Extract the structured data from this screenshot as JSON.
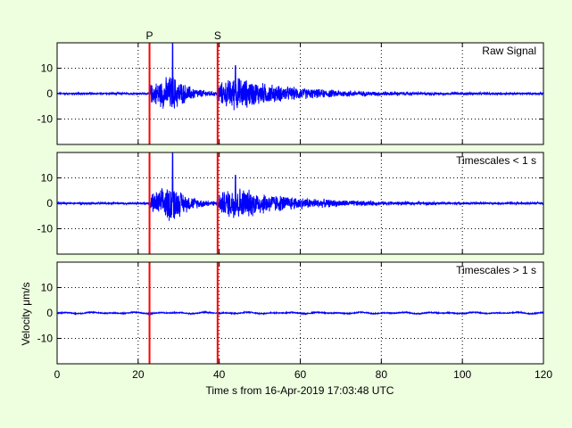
{
  "colors": {
    "background": "#eeffe0",
    "plot_background": "#ffffff",
    "trace": "#0000ff",
    "phase_marker": "#ff0000",
    "grid": "#000000"
  },
  "chart_data": {
    "type": "line",
    "layout": "three stacked panels sharing x axis",
    "xlabel": "Time s from 16-Apr-2019 17:03:48 UTC",
    "ylabel": "Velocity μm/s",
    "xlim": [
      0,
      120
    ],
    "xticks": [
      0,
      20,
      40,
      60,
      80,
      100,
      120
    ],
    "grid": true,
    "phase_markers": [
      {
        "label": "P",
        "x": 22.8
      },
      {
        "label": "S",
        "x": 39.6
      }
    ],
    "panels": [
      {
        "label": "Raw Signal",
        "ylim": [
          -20,
          20
        ],
        "yticks": [
          -10,
          0,
          10
        ],
        "noise_amplitude": 0.4,
        "wave_packets": [
          {
            "start": 23,
            "end": 39,
            "peak_time": 28.5,
            "peak_amplitude": 8,
            "max_spike": 20
          },
          {
            "start": 39.5,
            "end": 80,
            "peak_time": 44,
            "peak_amplitude": 7,
            "max_spike": 11
          }
        ],
        "extremes": {
          "max": 20,
          "min": -13
        }
      },
      {
        "label": "Timescales < 1 s",
        "ylim": [
          -20,
          20
        ],
        "yticks": [
          -10,
          0,
          10
        ],
        "noise_amplitude": 0.4,
        "wave_packets": [
          {
            "start": 23,
            "end": 39,
            "peak_time": 28.5,
            "peak_amplitude": 8,
            "max_spike": 20
          },
          {
            "start": 39.5,
            "end": 80,
            "peak_time": 44,
            "peak_amplitude": 7,
            "max_spike": 11
          }
        ],
        "extremes": {
          "max": 20,
          "min": -12.5
        }
      },
      {
        "label": "Timescales > 1 s",
        "ylim": [
          -20,
          20
        ],
        "yticks": [
          -10,
          0,
          10
        ],
        "noise_amplitude": 0.35,
        "wave_packets": [],
        "extremes": {
          "max": 0.8,
          "min": -0.8
        }
      }
    ]
  }
}
